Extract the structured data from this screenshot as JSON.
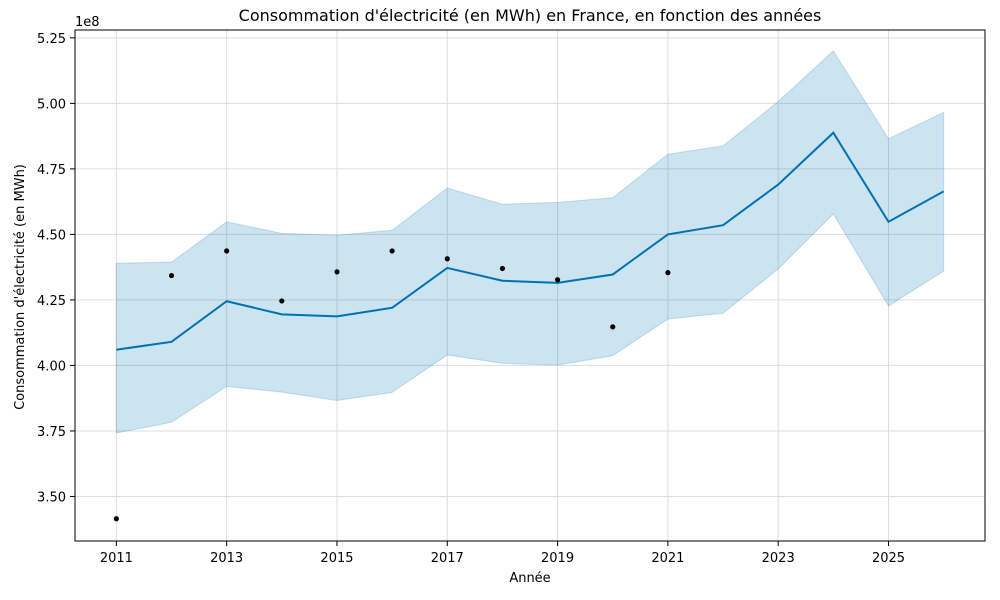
{
  "chart_data": {
    "type": "line",
    "title": "Consommation d'électricité (en MWh) en France, en fonction des années",
    "xlabel": "Année",
    "ylabel": "Consommation d'électricité (en MWh)",
    "y_offset_label": "1e8",
    "xlim": [
      2010.25,
      2026.75
    ],
    "ylim": [
      3.33,
      5.28
    ],
    "x_ticks": [
      2011,
      2013,
      2015,
      2017,
      2019,
      2021,
      2023,
      2025
    ],
    "x_tick_labels": [
      "2011",
      "2013",
      "2015",
      "2017",
      "2019",
      "2021",
      "2023",
      "2025"
    ],
    "y_ticks": [
      3.5,
      3.75,
      4.0,
      4.25,
      4.5,
      4.75,
      5.0,
      5.25
    ],
    "y_tick_labels": [
      "3.50",
      "3.75",
      "4.00",
      "4.25",
      "4.50",
      "4.75",
      "5.00",
      "5.25"
    ],
    "grid": true,
    "colors": {
      "line": "#0072b2",
      "band": "#0072b2",
      "points": "#000000",
      "grid": "#dddddd"
    },
    "forecast": {
      "x": [
        2011,
        2012,
        2013,
        2014,
        2015,
        2016,
        2017,
        2018,
        2019,
        2020,
        2021,
        2022,
        2023,
        2024,
        2025,
        2026
      ],
      "yhat": [
        4.06,
        4.09,
        4.245,
        4.195,
        4.187,
        4.22,
        4.372,
        4.323,
        4.315,
        4.347,
        4.5,
        4.535,
        4.69,
        4.888,
        4.548,
        4.664
      ],
      "yhat_lower": [
        3.742,
        3.783,
        3.92,
        3.898,
        3.866,
        3.897,
        4.04,
        4.008,
        4.001,
        4.037,
        4.177,
        4.199,
        4.368,
        4.578,
        4.227,
        4.36
      ],
      "yhat_upper": [
        4.39,
        4.394,
        4.548,
        4.504,
        4.497,
        4.516,
        4.677,
        4.615,
        4.622,
        4.64,
        4.806,
        4.838,
        5.007,
        5.2,
        4.865,
        4.966
      ]
    },
    "observed": {
      "x": [
        2011,
        2012,
        2013,
        2014,
        2015,
        2016,
        2017,
        2018,
        2019,
        2020,
        2021
      ],
      "y": [
        3.415,
        4.343,
        4.437,
        4.246,
        4.357,
        4.437,
        4.407,
        4.37,
        4.327,
        4.147,
        4.354
      ]
    }
  }
}
